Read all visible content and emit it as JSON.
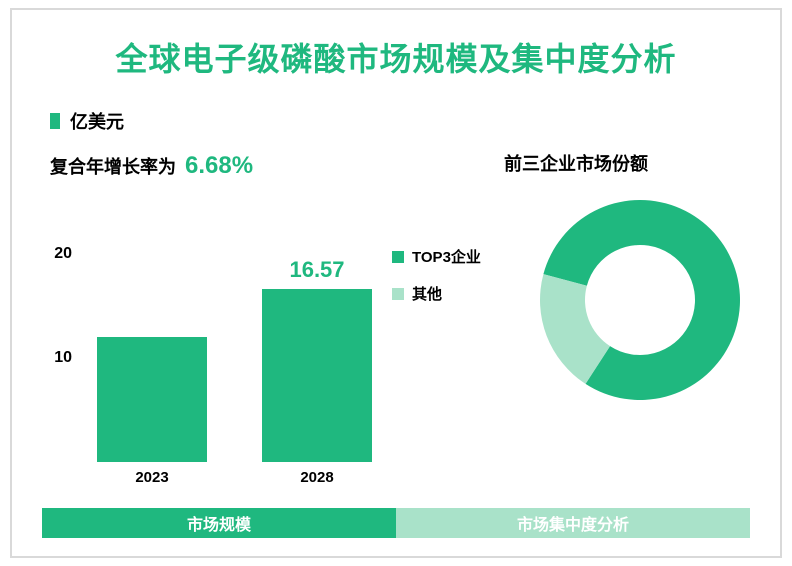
{
  "colors": {
    "primary": "#1fb87f",
    "primaryLight": "#a9e2c9",
    "titleText": "#1fb87f",
    "bodyText": "#222222",
    "border": "#d9d9d9",
    "background": "#ffffff"
  },
  "title": "全球电子级磷酸市场规模及集中度分析",
  "unitLegend": {
    "label": "亿美元"
  },
  "cagr": {
    "prefix": "复合年增长率为",
    "value": "6.68%"
  },
  "barChart": {
    "type": "bar",
    "categories": [
      "2023",
      "2028"
    ],
    "values": [
      12.0,
      16.57
    ],
    "valueLabels": [
      "",
      "16.57"
    ],
    "barColor": "#1fb87f",
    "ylim": [
      0,
      22
    ],
    "yticks": [
      10,
      20
    ],
    "barWidthPx": 110,
    "barGapPx": 55,
    "plotHeightPx": 230,
    "labelFontSize": 16,
    "valueFontSize": 22,
    "valueColor": "#1fb87f"
  },
  "donut": {
    "type": "pie",
    "title": "前三企业市场份额",
    "segments": [
      {
        "label": "TOP3企业",
        "value": 80,
        "color": "#1fb87f"
      },
      {
        "label": "其他",
        "value": 20,
        "color": "#a9e2c9"
      }
    ],
    "innerRadiusRatio": 0.55,
    "outerRadiusPx": 100,
    "startAngleDeg": 195
  },
  "footer": {
    "segments": [
      {
        "label": "市场规模",
        "bg": "#1fb87f"
      },
      {
        "label": "市场集中度分析",
        "bg": "#a9e2c9"
      }
    ]
  }
}
